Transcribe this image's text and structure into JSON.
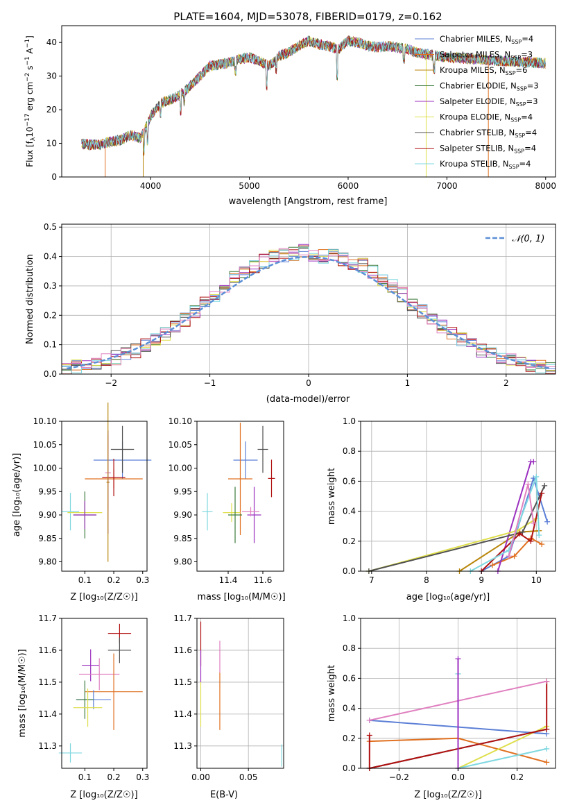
{
  "colors": {
    "chabrier_miles": "#5b7fd6",
    "salpeter_miles": "#e07020",
    "kroupa_miles": "#b8860b",
    "chabrier_elodie": "#3a7a3a",
    "salpeter_elodie": "#9b30c0",
    "kroupa_elodie": "#dede4a",
    "chabrier_stelib": "#505050",
    "salpeter_stelib": "#b01010",
    "kroupa_stelib": "#7fd8e0",
    "kroupa_pink": "#e080c0",
    "gauss": "#5b8fd6"
  },
  "spectrum": {
    "title": "PLATE=1604, MJD=53078, FIBERID=0179, z=0.162",
    "xlabel": "wavelength [Angstrom, rest frame]",
    "ylabel": "Flux [f$_\\lambda$10$^{-17}$ erg cm$^{-2}$ s$^{-1}$ A$^{-1}$]",
    "ylabel_parts": [
      "Flux [f",
      "λ",
      "10",
      "−17",
      " erg cm",
      "−2",
      " s",
      "−1",
      " A",
      "−1",
      "]"
    ],
    "xlim": [
      3100,
      8100
    ],
    "ylim": [
      0,
      45
    ],
    "xticks": [
      "4000",
      "5000",
      "6000",
      "7000",
      "8000"
    ],
    "yticks": [
      "0",
      "10",
      "20",
      "30",
      "40"
    ],
    "legend": [
      {
        "label": "Chabrier MILES, N",
        "sub": "SSP",
        "n": "=4",
        "color": "#5b7fd6"
      },
      {
        "label": "Salpeter MILES, N",
        "sub": "SSP",
        "n": "=3",
        "color": "#e07020"
      },
      {
        "label": "Kroupa MILES, N",
        "sub": "SSP",
        "n": "=6",
        "color": "#b8860b"
      },
      {
        "label": "Chabrier ELODIE, N",
        "sub": "SSP",
        "n": "=3",
        "color": "#3a7a3a"
      },
      {
        "label": "Salpeter ELODIE, N",
        "sub": "SSP",
        "n": "=3",
        "color": "#9b30c0"
      },
      {
        "label": "Kroupa ELODIE, N",
        "sub": "SSP",
        "n": "=4",
        "color": "#dede4a"
      },
      {
        "label": "Chabrier STELIB, N",
        "sub": "SSP",
        "n": "=4",
        "color": "#505050"
      },
      {
        "label": "Salpeter STELIB, N",
        "sub": "SSP",
        "n": "=4",
        "color": "#b01010"
      },
      {
        "label": "Kroupa STELIB, N",
        "sub": "SSP",
        "n": "=4",
        "color": "#7fd8e0"
      }
    ]
  },
  "hist": {
    "xlabel": "(data-model)/error",
    "ylabel": "Normed distribution",
    "xlim": [
      -2.5,
      2.5
    ],
    "ylim": [
      0,
      0.51
    ],
    "xticks": [
      "−2",
      "−1",
      "0",
      "1",
      "2"
    ],
    "yticks": [
      "0.0",
      "0.1",
      "0.2",
      "0.3",
      "0.4",
      "0.5"
    ],
    "legend_label": "𝒩(0, 1)"
  },
  "p_age_z": {
    "xlabel": "Z [log₁₀(Z/Z☉)]",
    "ylabel": "age  [log₁₀(age/yr)]",
    "xticks": [
      "0.1",
      "0.2",
      "0.3"
    ],
    "yticks": [
      "9.80",
      "9.85",
      "9.90",
      "9.95",
      "10.00",
      "10.05",
      "10.10"
    ]
  },
  "p_age_mass": {
    "xlabel": "mass [log₁₀(M/M☉)]",
    "xticks": [
      "11.4",
      "11.6"
    ],
    "yticks": [
      "9.80",
      "9.85",
      "9.90",
      "9.95",
      "10.00",
      "10.05",
      "10.10"
    ]
  },
  "p_mw_age": {
    "xlabel": "age  [log₁₀(age/yr)]",
    "ylabel": "mass weight",
    "xticks": [
      "7",
      "8",
      "9",
      "10"
    ],
    "yticks": [
      "0.0",
      "0.2",
      "0.4",
      "0.6",
      "0.8",
      "1.0"
    ]
  },
  "p_mass_z": {
    "xlabel": "Z [log₁₀(Z/Z☉)]",
    "ylabel": "mass [log₁₀(M/M☉)]",
    "xticks": [
      "0.1",
      "0.2",
      "0.3"
    ],
    "yticks": [
      "11.3",
      "11.4",
      "11.5",
      "11.6",
      "11.7"
    ]
  },
  "p_mass_ebv": {
    "xlabel": "E(B-V)",
    "xticks": [
      "0.00",
      "0.05"
    ],
    "yticks": [
      "11.3",
      "11.4",
      "11.5",
      "11.6",
      "11.7"
    ]
  },
  "p_mw_z": {
    "xlabel": "Z [log₁₀(Z/Z☉)]",
    "ylabel": "mass weight",
    "xticks": [
      "−0.2",
      "0.0",
      "0.2"
    ],
    "yticks": [
      "0.0",
      "0.2",
      "0.4",
      "0.6",
      "0.8",
      "1.0"
    ]
  },
  "chart_data": [
    {
      "type": "line",
      "title": "PLATE=1604, MJD=53078, FIBERID=0179, z=0.162",
      "xlabel": "wavelength [Angstrom, rest frame]",
      "ylabel": "Flux [f_λ 10^-17 erg cm^-2 s^-1 A^-1]",
      "xlim": [
        3100,
        8100
      ],
      "ylim": [
        0,
        45
      ],
      "x": [
        3300,
        3400,
        3500,
        3600,
        3700,
        3800,
        3900,
        4000,
        4100,
        4200,
        4300,
        4400,
        4500,
        4600,
        4700,
        4800,
        4900,
        5000,
        5100,
        5200,
        5300,
        5400,
        5500,
        5600,
        5700,
        5800,
        5900,
        6000,
        6100,
        6200,
        6300,
        6400,
        6500,
        6600,
        6700,
        6800,
        6900,
        7000,
        7100,
        7200,
        7300,
        7400,
        7500,
        7600,
        7700,
        7800,
        7900,
        8000
      ],
      "series": [
        {
          "name": "Chabrier MILES, N_SSP=4",
          "values": [
            10,
            9.5,
            9.8,
            10.5,
            11,
            12.5,
            11.5,
            18,
            22,
            23,
            24.5,
            27,
            30,
            33,
            33.5,
            34,
            35,
            35.5,
            34.5,
            33,
            36,
            37,
            39,
            40.5,
            39.5,
            39,
            38,
            40.5,
            40,
            39,
            38.5,
            39,
            38.5,
            38,
            37,
            36.5,
            36,
            35.5,
            35.5,
            35.2,
            35,
            34.8,
            34.6,
            34.5,
            34.3,
            34.1,
            34,
            33.8
          ]
        }
      ]
    },
    {
      "type": "bar",
      "xlabel": "(data-model)/error",
      "ylabel": "Normed distribution",
      "xlim": [
        -2.5,
        2.5
      ],
      "ylim": [
        0,
        0.51
      ],
      "x": [
        -2.45,
        -2.35,
        -2.25,
        -2.15,
        -2.05,
        -1.95,
        -1.85,
        -1.75,
        -1.65,
        -1.55,
        -1.45,
        -1.35,
        -1.25,
        -1.15,
        -1.05,
        -0.95,
        -0.85,
        -0.75,
        -0.65,
        -0.55,
        -0.45,
        -0.35,
        -0.25,
        -0.15,
        -0.05,
        0.05,
        0.15,
        0.25,
        0.35,
        0.45,
        0.55,
        0.65,
        0.75,
        0.85,
        0.95,
        1.05,
        1.15,
        1.25,
        1.35,
        1.45,
        1.55,
        1.65,
        1.75,
        1.85,
        1.95,
        2.05,
        2.15,
        2.25,
        2.35,
        2.45
      ],
      "series": [
        {
          "name": "data",
          "values": [
            0.02,
            0.025,
            0.03,
            0.04,
            0.045,
            0.055,
            0.065,
            0.08,
            0.1,
            0.12,
            0.135,
            0.16,
            0.185,
            0.215,
            0.24,
            0.27,
            0.3,
            0.325,
            0.35,
            0.37,
            0.385,
            0.4,
            0.405,
            0.41,
            0.42,
            0.4,
            0.4,
            0.41,
            0.39,
            0.38,
            0.37,
            0.35,
            0.325,
            0.3,
            0.27,
            0.24,
            0.215,
            0.19,
            0.16,
            0.14,
            0.12,
            0.1,
            0.08,
            0.065,
            0.055,
            0.045,
            0.035,
            0.03,
            0.025,
            0.02
          ]
        },
        {
          "name": "𝒩(0, 1)",
          "values": [
            0.019,
            0.025,
            0.032,
            0.04,
            0.049,
            0.06,
            0.072,
            0.086,
            0.102,
            0.12,
            0.139,
            0.16,
            0.183,
            0.206,
            0.23,
            0.254,
            0.278,
            0.301,
            0.323,
            0.343,
            0.36,
            0.375,
            0.387,
            0.395,
            0.398,
            0.398,
            0.395,
            0.387,
            0.375,
            0.36,
            0.343,
            0.323,
            0.301,
            0.278,
            0.254,
            0.23,
            0.206,
            0.183,
            0.16,
            0.139,
            0.12,
            0.102,
            0.086,
            0.072,
            0.06,
            0.049,
            0.04,
            0.032,
            0.025,
            0.019
          ]
        }
      ]
    },
    {
      "type": "scatter",
      "xlabel": "Z [log10(Z/Z☉)]",
      "ylabel": "age [log10(age/yr)]",
      "xlim": [
        0.02,
        0.315
      ],
      "ylim": [
        9.78,
        10.1
      ],
      "points": [
        {
          "color": "#5b7fd6",
          "x": 0.23,
          "y": 10.017,
          "xerr": 0.1,
          "yerr": 0.04
        },
        {
          "color": "#e07020",
          "x": 0.2,
          "y": 9.977,
          "xerr": 0.1,
          "yerr": 0.02
        },
        {
          "color": "#505050",
          "x": 0.23,
          "y": 10.04,
          "xerr": 0.04,
          "yerr": 0.05
        },
        {
          "color": "#b01010",
          "x": 0.2,
          "y": 9.98,
          "xerr": 0.04,
          "yerr": 0.04
        },
        {
          "color": "#e080c0",
          "x": 0.18,
          "y": 9.99,
          "xerr": 0.01,
          "yerr": 0.08
        },
        {
          "color": "#9b30c0",
          "x": 0.18,
          "y": 9.97,
          "xerr": 0.005,
          "yerr": 0.11
        },
        {
          "color": "#b8860b",
          "x": 0.18,
          "y": 9.97,
          "xerr": 0.005,
          "yerr": 0.17
        },
        {
          "color": "#7fd8e0",
          "x": 0.05,
          "y": 9.907,
          "xerr": 0.03,
          "yerr": 0.04
        },
        {
          "color": "#dede4a",
          "x": 0.1,
          "y": 9.905,
          "xerr": 0.06,
          "yerr": 0.02
        },
        {
          "color": "#3a7a3a",
          "x": 0.1,
          "y": 9.9,
          "xerr": 0.04,
          "yerr": 0.05
        },
        {
          "color": "#9b30c0",
          "x": 0.1,
          "y": 9.9,
          "xerr": 0.04,
          "yerr": 0.03
        }
      ]
    },
    {
      "type": "scatter",
      "xlabel": "mass [log10(M/M☉)]",
      "xlim": [
        11.22,
        11.72
      ],
      "ylim": [
        9.78,
        10.1
      ],
      "points": [
        {
          "color": "#5b7fd6",
          "x": 11.5,
          "y": 10.017,
          "xerr": 0.07,
          "yerr": 0.04
        },
        {
          "color": "#e07020",
          "x": 11.47,
          "y": 9.977,
          "xerr": 0.07,
          "yerr": 0.12
        },
        {
          "color": "#505050",
          "x": 11.6,
          "y": 10.04,
          "xerr": 0.03,
          "yerr": 0.05
        },
        {
          "color": "#b01010",
          "x": 11.65,
          "y": 9.978,
          "xerr": 0.02,
          "yerr": 0.04
        },
        {
          "color": "#7fd8e0",
          "x": 11.28,
          "y": 9.907,
          "xerr": 0.03,
          "yerr": 0.04
        },
        {
          "color": "#dede4a",
          "x": 11.42,
          "y": 9.905,
          "xerr": 0.05,
          "yerr": 0.02
        },
        {
          "color": "#3a7a3a",
          "x": 11.44,
          "y": 9.9,
          "xerr": 0.04,
          "yerr": 0.06
        },
        {
          "color": "#9b30c0",
          "x": 11.55,
          "y": 9.9,
          "xerr": 0.04,
          "yerr": 0.06
        },
        {
          "color": "#e080c0",
          "x": 11.53,
          "y": 9.907,
          "xerr": 0.05,
          "yerr": 0.01
        }
      ]
    },
    {
      "type": "line",
      "xlabel": "age [log10(age/yr)]",
      "ylabel": "mass weight",
      "xlim": [
        6.8,
        10.35
      ],
      "ylim": [
        0,
        1
      ],
      "series": [
        {
          "name": "Chabrier MILES",
          "color": "#5b7fd6",
          "x": [
            9.0,
            9.5,
            9.95,
            10.2
          ],
          "y": [
            0.0,
            0.1,
            0.62,
            0.33
          ]
        },
        {
          "name": "Salpeter MILES",
          "color": "#e07020",
          "x": [
            9.2,
            9.6,
            9.9,
            10.1
          ],
          "y": [
            0.04,
            0.1,
            0.22,
            0.18
          ]
        },
        {
          "name": "Kroupa MILES",
          "color": "#b8860b",
          "x": [
            8.6,
            9.7,
            10.05
          ],
          "y": [
            0.0,
            0.26,
            0.27
          ]
        },
        {
          "name": "Salpeter ELODIE",
          "color": "#9b30c0",
          "x": [
            9.3,
            9.9,
            9.95
          ],
          "y": [
            0.0,
            0.73,
            0.73
          ]
        },
        {
          "name": "Kroupa ELODIE",
          "color": "#dede4a",
          "x": [
            6.95,
            9.65,
            10.0
          ],
          "y": [
            0.0,
            0.27,
            0.35
          ]
        },
        {
          "name": "Chabrier STELIB",
          "color": "#505050",
          "x": [
            6.95,
            9.75,
            10.15
          ],
          "y": [
            0.0,
            0.26,
            0.57
          ]
        },
        {
          "name": "Salpeter STELIB",
          "color": "#b01010",
          "x": [
            9.0,
            9.7,
            9.9,
            10.1
          ],
          "y": [
            0.0,
            0.25,
            0.2,
            0.52
          ]
        },
        {
          "name": "Kroupa STELIB",
          "color": "#7fd8e0",
          "x": [
            8.8,
            9.5,
            10.0,
            10.05
          ],
          "y": [
            0.0,
            0.14,
            0.63,
            0.24
          ]
        },
        {
          "name": "pink",
          "color": "#e080c0",
          "x": [
            9.5,
            9.85,
            9.95
          ],
          "y": [
            0.1,
            0.58,
            0.32
          ]
        }
      ]
    },
    {
      "type": "scatter",
      "xlabel": "Z [log10(Z/Z☉)]",
      "ylabel": "mass [log10(M/M☉)]",
      "xlim": [
        0.02,
        0.315
      ],
      "ylim": [
        11.23,
        11.7
      ],
      "points": [
        {
          "color": "#b01010",
          "x": 0.22,
          "y": 11.653,
          "xerr": 0.04,
          "yerr": 0.03
        },
        {
          "color": "#505050",
          "x": 0.22,
          "y": 11.6,
          "xerr": 0.04,
          "yerr": 0.04
        },
        {
          "color": "#9b30c0",
          "x": 0.12,
          "y": 11.553,
          "xerr": 0.03,
          "yerr": 0.05
        },
        {
          "color": "#e080c0",
          "x": 0.15,
          "y": 11.525,
          "xerr": 0.07,
          "yerr": 0.05
        },
        {
          "color": "#e07020",
          "x": 0.2,
          "y": 11.47,
          "xerr": 0.1,
          "yerr": 0.12
        },
        {
          "color": "#5b7fd6",
          "x": 0.13,
          "y": 11.445,
          "xerr": 0.06,
          "yerr": 0.03
        },
        {
          "color": "#3a7a3a",
          "x": 0.1,
          "y": 11.445,
          "xerr": 0.03,
          "yerr": 0.06
        },
        {
          "color": "#dede4a",
          "x": 0.11,
          "y": 11.42,
          "xerr": 0.05,
          "yerr": 0.06
        },
        {
          "color": "#7fd8e0",
          "x": 0.05,
          "y": 11.278,
          "xerr": 0.04,
          "yerr": 0.03
        }
      ]
    },
    {
      "type": "scatter",
      "xlabel": "E(B-V)",
      "xlim": [
        -0.004,
        0.087
      ],
      "ylim": [
        11.23,
        11.7
      ],
      "points": [
        {
          "color": "#b01010",
          "x": 0.0,
          "y": 11.62,
          "yerr": 0.07
        },
        {
          "color": "#9b30c0",
          "x": 0.0,
          "y": 11.55,
          "yerr": 0.05
        },
        {
          "color": "#dede4a",
          "x": 0.0,
          "y": 11.43,
          "yerr": 0.07
        },
        {
          "color": "#e080c0",
          "x": 0.02,
          "y": 11.58,
          "yerr": 0.05
        },
        {
          "color": "#e07020",
          "x": 0.02,
          "y": 11.44,
          "yerr": 0.09
        },
        {
          "color": "#7fd8e0",
          "x": 0.085,
          "y": 11.27,
          "yerr": 0.035
        }
      ]
    },
    {
      "type": "line",
      "xlabel": "Z [log10(Z/Z☉)]",
      "ylabel": "mass weight",
      "xlim": [
        -0.33,
        0.33
      ],
      "ylim": [
        0,
        1
      ],
      "series": [
        {
          "name": "Chabrier MILES",
          "color": "#5b7fd6",
          "x": [
            -0.3,
            0.3
          ],
          "y": [
            0.32,
            0.23
          ]
        },
        {
          "name": "Salpeter MILES",
          "color": "#e07020",
          "x": [
            -0.3,
            0.0,
            0.3
          ],
          "y": [
            0.18,
            0.2,
            0.04
          ]
        },
        {
          "name": "Kroupa ELODIE",
          "color": "#dede4a",
          "x": [
            0.0,
            0.3
          ],
          "y": [
            0.0,
            0.28
          ]
        },
        {
          "name": "Chabrier STELIB",
          "color": "#505050",
          "x": [
            -0.3,
            0.3
          ],
          "y": [
            0.0,
            0.26
          ]
        },
        {
          "name": "Salpeter STELIB",
          "color": "#b01010",
          "x": [
            -0.3,
            -0.3,
            0.3,
            0.3
          ],
          "y": [
            0.22,
            0.0,
            0.26,
            0.58
          ]
        },
        {
          "name": "Kroupa STELIB",
          "color": "#7fd8e0",
          "x": [
            0.0,
            0.0,
            0.3
          ],
          "y": [
            0.63,
            0.0,
            0.13
          ]
        },
        {
          "name": "pink",
          "color": "#e080c0",
          "x": [
            -0.3,
            0.3
          ],
          "y": [
            0.32,
            0.58
          ]
        },
        {
          "name": "Salpeter ELODIE",
          "color": "#9b30c0",
          "x": [
            0.0,
            0.0
          ],
          "y": [
            0.0,
            0.73
          ]
        }
      ]
    }
  ]
}
